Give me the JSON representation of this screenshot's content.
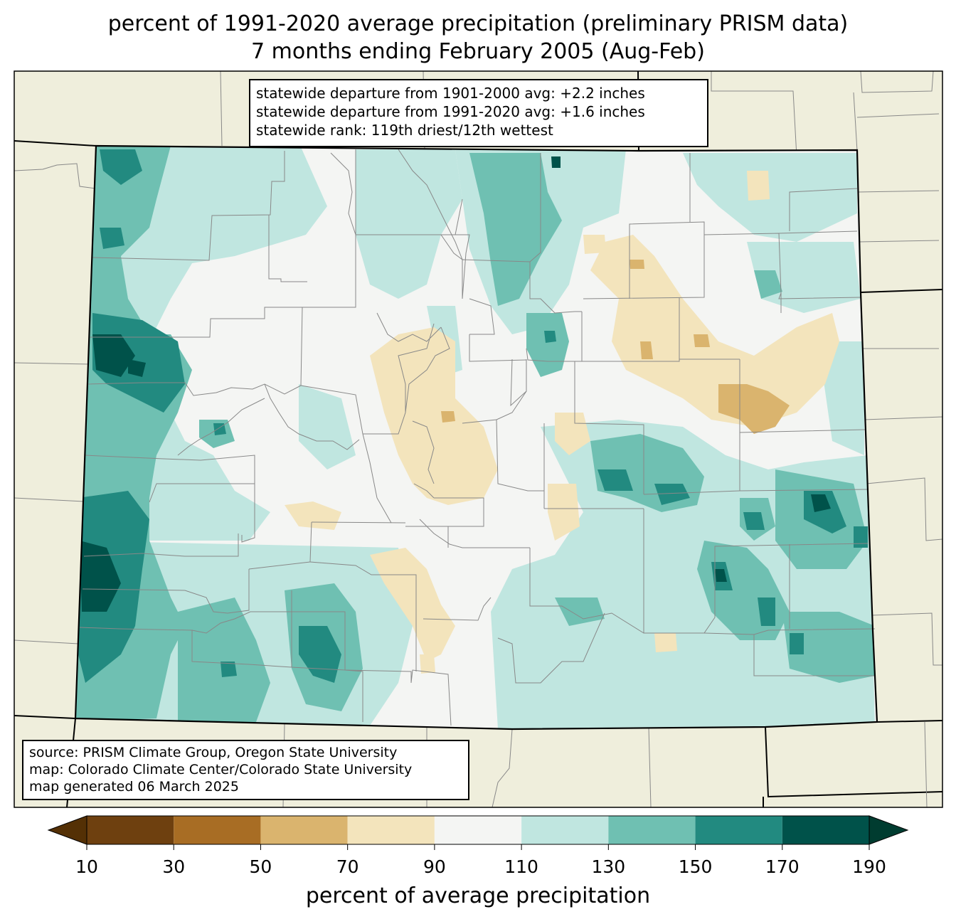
{
  "title": {
    "line1": "percent of 1991-2020 average precipitation (preliminary PRISM data)",
    "line2": "7 months ending February 2005 (Aug-Feb)"
  },
  "stats": {
    "line1": "statewide departure from 1901-2000 avg: +2.2 inches",
    "line2": "statewide departure from 1991-2020 avg: +1.6 inches",
    "line3": "statewide rank: 119th driest/12th wettest"
  },
  "source": {
    "line1": "source: PRISM Climate Group, Oregon State University",
    "line2": "map: Colorado Climate Center/Colorado State University",
    "line3": "map generated 06 March 2025"
  },
  "colorbar": {
    "label": "percent of average precipitation",
    "ticks": [
      "10",
      "30",
      "50",
      "70",
      "90",
      "110",
      "130",
      "150",
      "170",
      "190"
    ],
    "colors": [
      "#6e400f",
      "#a86d24",
      "#dab46e",
      "#f3e4bc",
      "#f4f5f3",
      "#c0e6e0",
      "#6fc0b2",
      "#228a80",
      "#00524a"
    ],
    "under_color": "#543005",
    "over_color": "#003c30"
  },
  "map_colors": {
    "background": "#efeedc",
    "state_outline": "#000000",
    "county_lines": "#888888"
  }
}
